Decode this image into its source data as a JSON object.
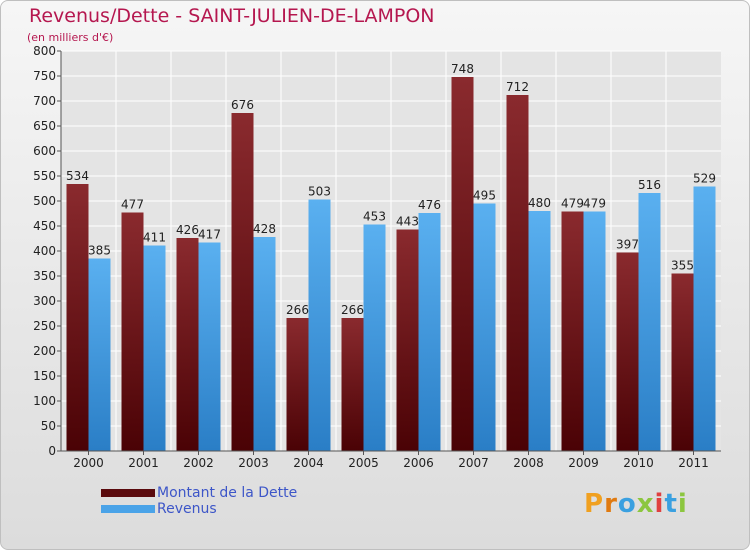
{
  "title": "Revenus/Dette - SAINT-JULIEN-DE-LAMPON",
  "subtitle": "(en milliers d'€)",
  "colors": {
    "dette": "#7a1a1d",
    "revenus": "#4aa3e8",
    "title": "#b5174f",
    "legend_text": "#3d56c8"
  },
  "legend": [
    {
      "label": "Montant de la Dette",
      "color": "#6e0c10"
    },
    {
      "label": "Revenus",
      "color": "#4aa3e8"
    }
  ],
  "logo": {
    "text": "Proxiti"
  },
  "chart_data": {
    "type": "bar",
    "categories": [
      "2000",
      "2001",
      "2002",
      "2003",
      "2004",
      "2005",
      "2006",
      "2007",
      "2008",
      "2009",
      "2010",
      "2011"
    ],
    "series": [
      {
        "name": "Montant de la Dette",
        "values": [
          534,
          477,
          426,
          676,
          266,
          266,
          443,
          748,
          712,
          479,
          397,
          355
        ]
      },
      {
        "name": "Revenus",
        "values": [
          385,
          411,
          417,
          428,
          503,
          453,
          476,
          495,
          480,
          479,
          516,
          529
        ]
      }
    ],
    "title": "Revenus/Dette - SAINT-JULIEN-DE-LAMPON",
    "ylim": [
      0,
      800
    ],
    "yticks": [
      0,
      50,
      100,
      150,
      200,
      250,
      300,
      350,
      400,
      450,
      500,
      550,
      600,
      650,
      700,
      750,
      800
    ],
    "grid": true,
    "legend_position": "bottom-left"
  }
}
